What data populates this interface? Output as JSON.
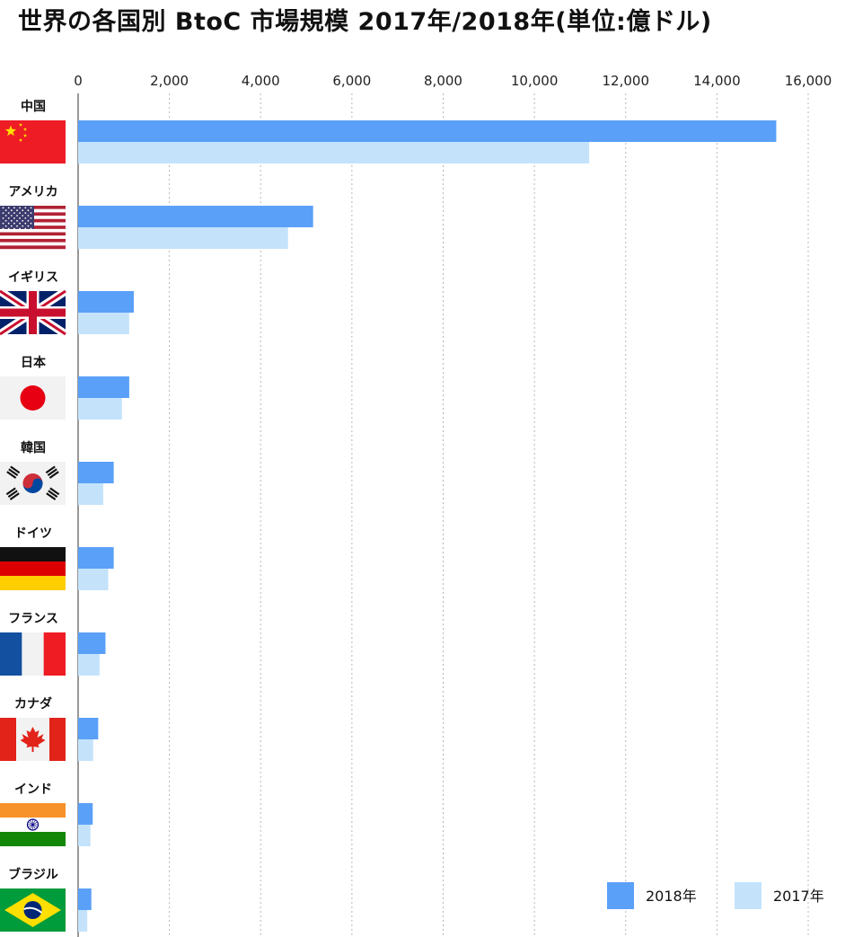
{
  "title": "世界の各国別 BtoC 市場規模 2017年/2018年(単位:億ドル)",
  "colors": {
    "series_2018": "#5aa0f8",
    "series_2017": "#c4e3fb",
    "grid": "#b8b8b8",
    "axis": "#555555"
  },
  "chart_data": {
    "type": "bar",
    "orientation": "horizontal",
    "title": "世界の各国別 BtoC 市場規模 2017年/2018年(単位:億ドル)",
    "xlabel": "",
    "ylabel": "",
    "xlim": [
      0,
      16000
    ],
    "ticks": [
      "0",
      "2,000",
      "4,000",
      "6,000",
      "8,000",
      "10,000",
      "12,000",
      "14,000",
      "16,000"
    ],
    "tick_values": [
      0,
      2000,
      4000,
      6000,
      8000,
      10000,
      12000,
      14000,
      16000
    ],
    "grid": true,
    "legend_position": "bottom-right",
    "categories": [
      "中国",
      "アメリカ",
      "イギリス",
      "日本",
      "韓国",
      "ドイツ",
      "フランス",
      "カナダ",
      "インド",
      "ブラジル"
    ],
    "flags": [
      "china-flag",
      "usa-flag",
      "uk-flag",
      "japan-flag",
      "korea-flag",
      "germany-flag",
      "france-flag",
      "canada-flag",
      "india-flag",
      "brazil-flag"
    ],
    "series": [
      {
        "name": "2018年",
        "values": [
          15300,
          5150,
          1220,
          1120,
          780,
          780,
          600,
          440,
          320,
          290
        ]
      },
      {
        "name": "2017年",
        "values": [
          11200,
          4600,
          1120,
          960,
          550,
          660,
          470,
          330,
          270,
          200
        ]
      }
    ]
  }
}
